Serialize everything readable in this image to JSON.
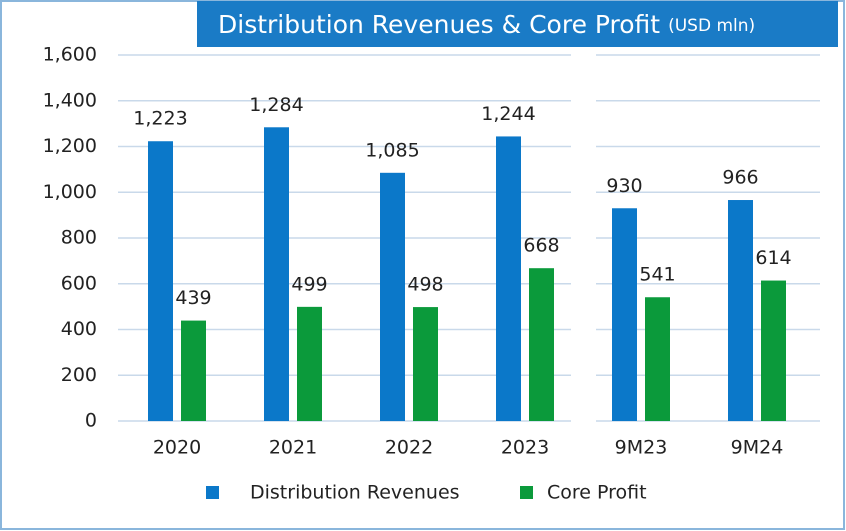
{
  "chart_data": {
    "type": "bar",
    "title": "Distribution Revenues & Core Profit",
    "subtitle": "(USD mln)",
    "categories": [
      "2020",
      "2021",
      "2022",
      "2023",
      "9M23",
      "9M24"
    ],
    "series": [
      {
        "name": "Distribution Revenues",
        "color": "#0b78c9",
        "values": [
          1223,
          1284,
          1085,
          1244,
          930,
          966
        ],
        "value_labels": [
          "1,223",
          "1,284",
          "1,085",
          "1,244",
          "930",
          "966"
        ]
      },
      {
        "name": "Core Profit",
        "color": "#0b9a3b",
        "values": [
          439,
          499,
          498,
          668,
          541,
          614
        ]
      }
    ],
    "ylim": [
      0,
      1600
    ],
    "yticks": [
      0,
      200,
      400,
      600,
      800,
      {
        "value": 1000,
        "label": "1,000"
      },
      {
        "value": 1200,
        "label": "1,200"
      },
      {
        "value": 1400,
        "label": "1,400"
      },
      {
        "value": 1600,
        "label": "1,600"
      }
    ],
    "grid": true,
    "legend": "bottom"
  }
}
